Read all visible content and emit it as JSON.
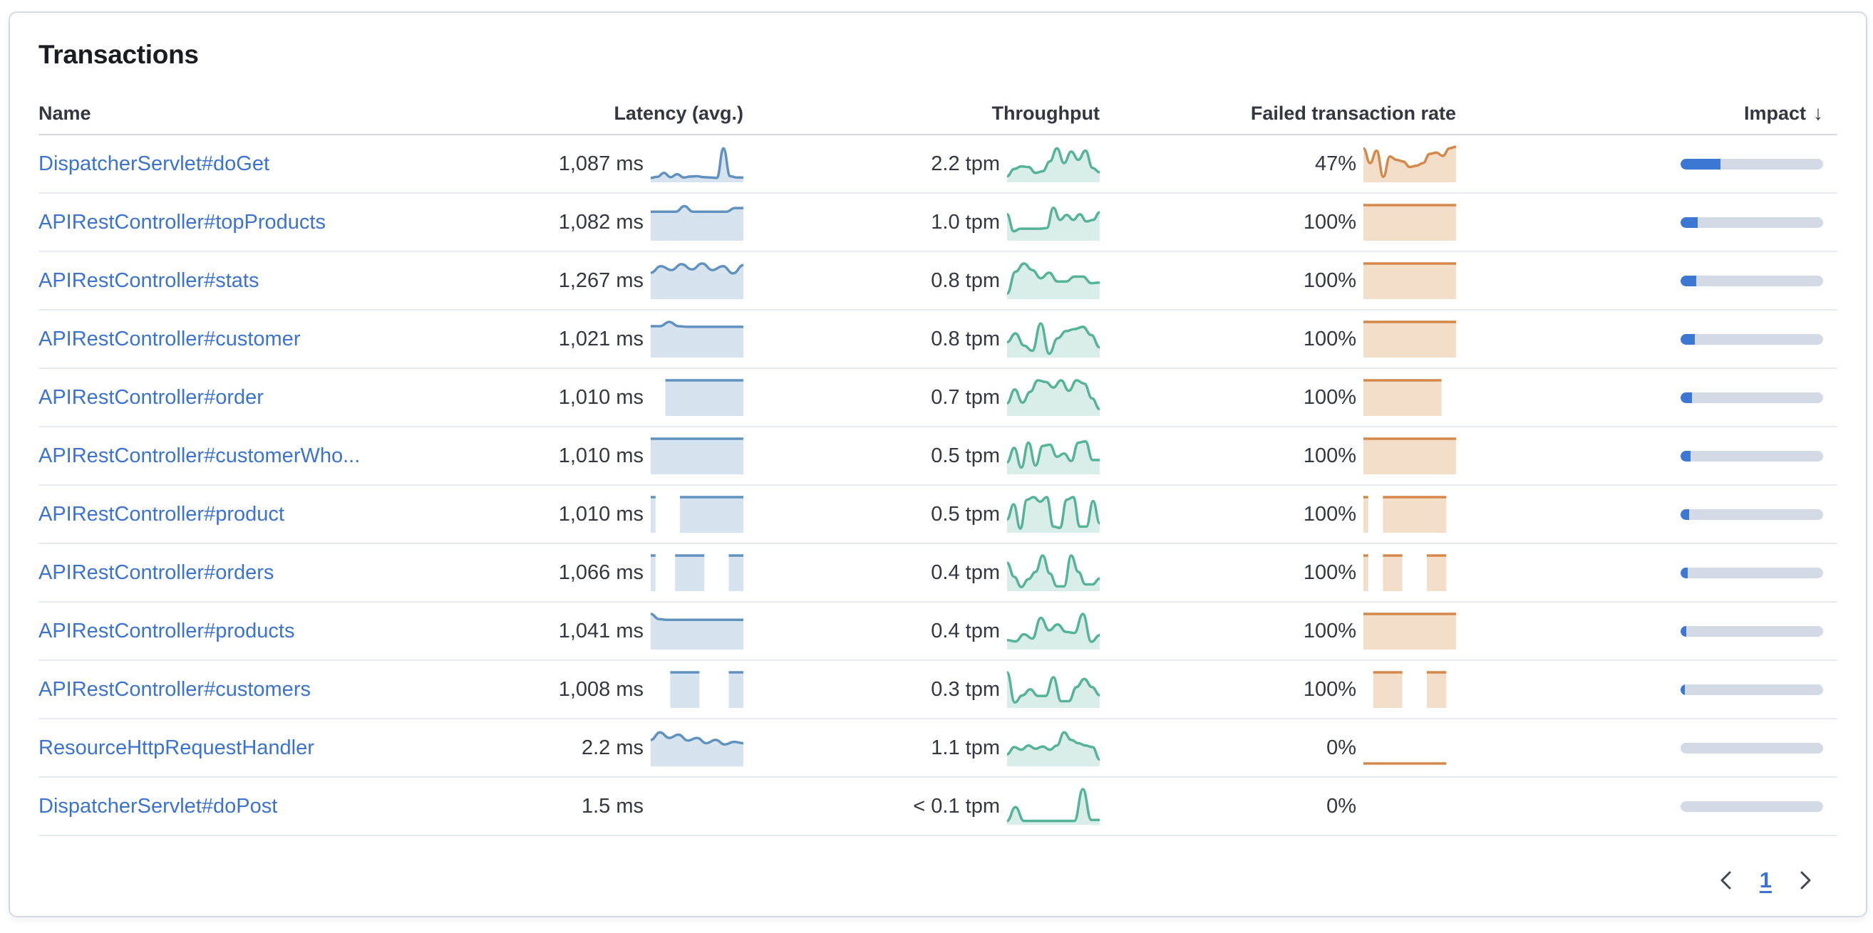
{
  "card": {
    "title": "Transactions"
  },
  "table": {
    "columns": {
      "name": "Name",
      "latency": "Latency (avg.)",
      "throughput": "Throughput",
      "failed": "Failed transaction rate",
      "impact": "Impact"
    },
    "sort_icon": "↓",
    "rows": [
      {
        "name": "DispatcherServlet#doGet",
        "latency": "1,087 ms",
        "throughput": "2.2 tpm",
        "failed_rate": "47%",
        "impact_pct": 28,
        "latency_spark": [
          0.05,
          0.08,
          0.2,
          0.07,
          0.16,
          0.06,
          0.09,
          0.1,
          0.07,
          0.06,
          0.05,
          0.95,
          0.1,
          0.06,
          0.06
        ],
        "throughput_spark": [
          0.1,
          0.32,
          0.4,
          0.38,
          0.2,
          0.25,
          0.55,
          0.95,
          0.5,
          0.85,
          0.6,
          0.88,
          0.35,
          0.22
        ],
        "failed_spark": [
          0.95,
          0.5,
          0.88,
          0.08,
          0.7,
          0.6,
          0.55,
          0.38,
          0.42,
          0.5,
          0.78,
          0.82,
          0.72,
          0.95,
          1
        ]
      },
      {
        "name": "APIRestController#topProducts",
        "latency": "1,082 ms",
        "throughput": "1.0 tpm",
        "failed_rate": "100%",
        "impact_pct": 12,
        "latency_spark": [
          0.8,
          0.8,
          0.8,
          0.8,
          0.97,
          0.8,
          0.8,
          0.8,
          0.8,
          0.8,
          0.91,
          0.91
        ],
        "throughput_spark": [
          0.72,
          0.2,
          0.28,
          0.28,
          0.28,
          0.28,
          0.3,
          0.92,
          0.55,
          0.7,
          0.55,
          0.72,
          0.5,
          0.55,
          0.78
        ],
        "failed_spark": [
          1,
          1,
          1,
          1,
          1,
          1,
          1,
          1,
          1,
          1,
          1,
          1
        ]
      },
      {
        "name": "APIRestController#stats",
        "latency": "1,267 ms",
        "throughput": "0.8 tpm",
        "failed_rate": "100%",
        "impact_pct": 11,
        "latency_spark": [
          0.72,
          0.92,
          0.8,
          0.98,
          0.82,
          1,
          0.8,
          0.92,
          0.7,
          0.95
        ],
        "throughput_spark": [
          0.08,
          0.75,
          1,
          0.8,
          0.55,
          0.72,
          0.45,
          0.45,
          0.6,
          0.6,
          0.4,
          0.42
        ],
        "failed_spark": [
          1,
          1,
          1,
          1,
          1,
          1,
          1,
          1,
          1,
          1,
          1,
          1
        ]
      },
      {
        "name": "APIRestController#customer",
        "latency": "1,021 ms",
        "throughput": "0.8 tpm",
        "failed_rate": "100%",
        "impact_pct": 10,
        "latency_spark": [
          0.87,
          0.87,
          1,
          0.87,
          0.85,
          0.85,
          0.85,
          0.85,
          0.85,
          0.85,
          0.85
        ],
        "throughput_spark": [
          0.38,
          0.65,
          0.28,
          0.12,
          0.95,
          0.03,
          0.5,
          0.72,
          0.78,
          0.85,
          0.6,
          0.22
        ],
        "failed_spark": [
          1,
          1,
          1,
          1,
          1,
          1,
          1,
          1,
          1,
          1,
          1,
          1
        ]
      },
      {
        "name": "APIRestController#order",
        "latency": "1,010 ms",
        "throughput": "0.7 tpm",
        "failed_rate": "100%",
        "impact_pct": 8,
        "latency_spark": [
          null,
          null,
          null,
          1,
          1,
          1,
          1,
          1,
          1,
          1,
          1,
          1,
          1,
          1,
          1,
          1,
          1,
          1,
          1,
          1
        ],
        "throughput_spark": [
          0.3,
          0.72,
          0.32,
          0.65,
          1,
          0.95,
          0.78,
          1,
          0.68,
          1,
          0.9,
          0.45,
          0.12
        ],
        "failed_spark": [
          1,
          1,
          1,
          1,
          1,
          1,
          1,
          1,
          1,
          1,
          1,
          1,
          1,
          1,
          1,
          1,
          1,
          null,
          null,
          null
        ]
      },
      {
        "name": "APIRestController#customerWho...",
        "latency": "1,010 ms",
        "throughput": "0.5 tpm",
        "failed_rate": "100%",
        "impact_pct": 7,
        "latency_spark": [
          1,
          1,
          1,
          1,
          1,
          1,
          1,
          1,
          1,
          1,
          1,
          1,
          1,
          1,
          1,
          1,
          1,
          1,
          1,
          1
        ],
        "throughput_spark": [
          0.28,
          0.72,
          0.12,
          0.88,
          0.18,
          0.78,
          0.82,
          0.45,
          0.55,
          0.32,
          0.88,
          0.92,
          0.35,
          0.35
        ],
        "failed_spark": [
          1,
          1,
          1,
          1,
          1,
          1,
          1,
          1,
          1,
          1,
          1,
          1,
          1,
          1,
          1,
          1,
          1,
          1,
          1,
          1
        ]
      },
      {
        "name": "APIRestController#product",
        "latency": "1,010 ms",
        "throughput": "0.5 tpm",
        "failed_rate": "100%",
        "impact_pct": 6,
        "latency_spark": [
          1,
          1,
          null,
          null,
          null,
          null,
          1,
          1,
          1,
          1,
          1,
          1,
          1,
          1,
          1,
          1,
          1,
          1,
          1,
          1
        ],
        "throughput_spark": [
          0.32,
          0.78,
          0.04,
          0.92,
          1,
          0.86,
          1,
          0.1,
          0.06,
          0.92,
          1,
          0.1,
          0.1,
          0.88,
          0.2
        ],
        "failed_spark": [
          1,
          1,
          null,
          null,
          1,
          1,
          1,
          1,
          1,
          1,
          1,
          1,
          1,
          1,
          1,
          1,
          1,
          1,
          null,
          null
        ]
      },
      {
        "name": "APIRestController#orders",
        "latency": "1,066 ms",
        "throughput": "0.4 tpm",
        "failed_rate": "100%",
        "impact_pct": 5,
        "latency_spark": [
          1,
          1,
          null,
          null,
          null,
          1,
          1,
          1,
          1,
          1,
          1,
          1,
          null,
          null,
          null,
          null,
          1,
          1,
          1,
          1
        ],
        "throughput_spark": [
          0.78,
          0.35,
          0.04,
          0.28,
          0.5,
          1,
          0.45,
          0.06,
          0.06,
          1,
          0.5,
          0.12,
          0.12,
          0.3
        ],
        "failed_spark": [
          1,
          1,
          null,
          null,
          1,
          1,
          1,
          1,
          1,
          null,
          null,
          null,
          null,
          1,
          1,
          1,
          1,
          1,
          null,
          null
        ]
      },
      {
        "name": "APIRestController#products",
        "latency": "1,041 ms",
        "throughput": "0.4 tpm",
        "failed_rate": "100%",
        "impact_pct": 4,
        "latency_spark": [
          1,
          0.84,
          0.82,
          0.82,
          0.82,
          0.82,
          0.82,
          0.82,
          0.82,
          0.82,
          0.82,
          0.82
        ],
        "throughput_spark": [
          0.2,
          0.16,
          0.38,
          0.25,
          0.88,
          0.5,
          0.68,
          0.45,
          0.42,
          1,
          0.15,
          0.35
        ],
        "failed_spark": [
          1,
          1,
          1,
          1,
          1,
          1,
          1,
          1,
          1,
          1,
          1,
          1,
          1,
          1,
          1,
          1,
          1,
          1,
          1,
          1
        ]
      },
      {
        "name": "APIRestController#customers",
        "latency": "1,008 ms",
        "throughput": "0.3 tpm",
        "failed_rate": "100%",
        "impact_pct": 3,
        "latency_spark": [
          null,
          null,
          null,
          null,
          1,
          1,
          1,
          1,
          1,
          1,
          1,
          null,
          null,
          null,
          null,
          null,
          1,
          1,
          1,
          1
        ],
        "throughput_spark": [
          1,
          0.08,
          0.3,
          0.48,
          0.28,
          0.28,
          0.85,
          0.12,
          0.12,
          0.55,
          0.8,
          0.55,
          0.3
        ],
        "failed_spark": [
          null,
          null,
          1,
          1,
          1,
          1,
          1,
          1,
          1,
          null,
          null,
          null,
          null,
          1,
          1,
          1,
          1,
          1,
          null,
          null
        ]
      },
      {
        "name": "ResourceHttpRequestHandler",
        "latency": "2.2 ms",
        "throughput": "1.1 tpm",
        "failed_rate": "0%",
        "impact_pct": 0,
        "latency_spark": [
          0.72,
          0.95,
          0.78,
          0.88,
          0.7,
          0.78,
          0.62,
          0.72,
          0.58,
          0.66,
          0.62
        ],
        "throughput_spark": [
          0.28,
          0.5,
          0.42,
          0.55,
          0.45,
          0.52,
          0.42,
          0.55,
          0.95,
          0.72,
          0.62,
          0.55,
          0.5,
          0.12
        ],
        "failed_spark": [
          0,
          0,
          0,
          0,
          0,
          0,
          0,
          0,
          0,
          0,
          0,
          0,
          0,
          0,
          0,
          0,
          0,
          0,
          null,
          null
        ]
      },
      {
        "name": "DispatcherServlet#doPost",
        "latency": "1.5 ms",
        "throughput": "< 0.1 tpm",
        "failed_rate": "0%",
        "impact_pct": 0,
        "latency_spark": null,
        "throughput_spark": [
          0.03,
          0.45,
          0.03,
          0.03,
          0.03,
          0.03,
          0.03,
          0.03,
          0.03,
          1,
          0.06,
          0.06
        ],
        "failed_spark": null
      }
    ]
  },
  "pagination": {
    "page": "1"
  },
  "colors": {
    "link": "#3b73ce",
    "text": "#343741",
    "latency_line": "#6092c0",
    "latency_fill": "rgba(96,146,192,0.25)",
    "throughput_line": "#54b399",
    "throughput_fill": "rgba(84,179,153,0.22)",
    "failed_line": "#d4894a",
    "failed_fill": "rgba(216,146,77,0.30)",
    "impact_fill": "#3c77d3",
    "impact_track": "#d3dae6"
  }
}
